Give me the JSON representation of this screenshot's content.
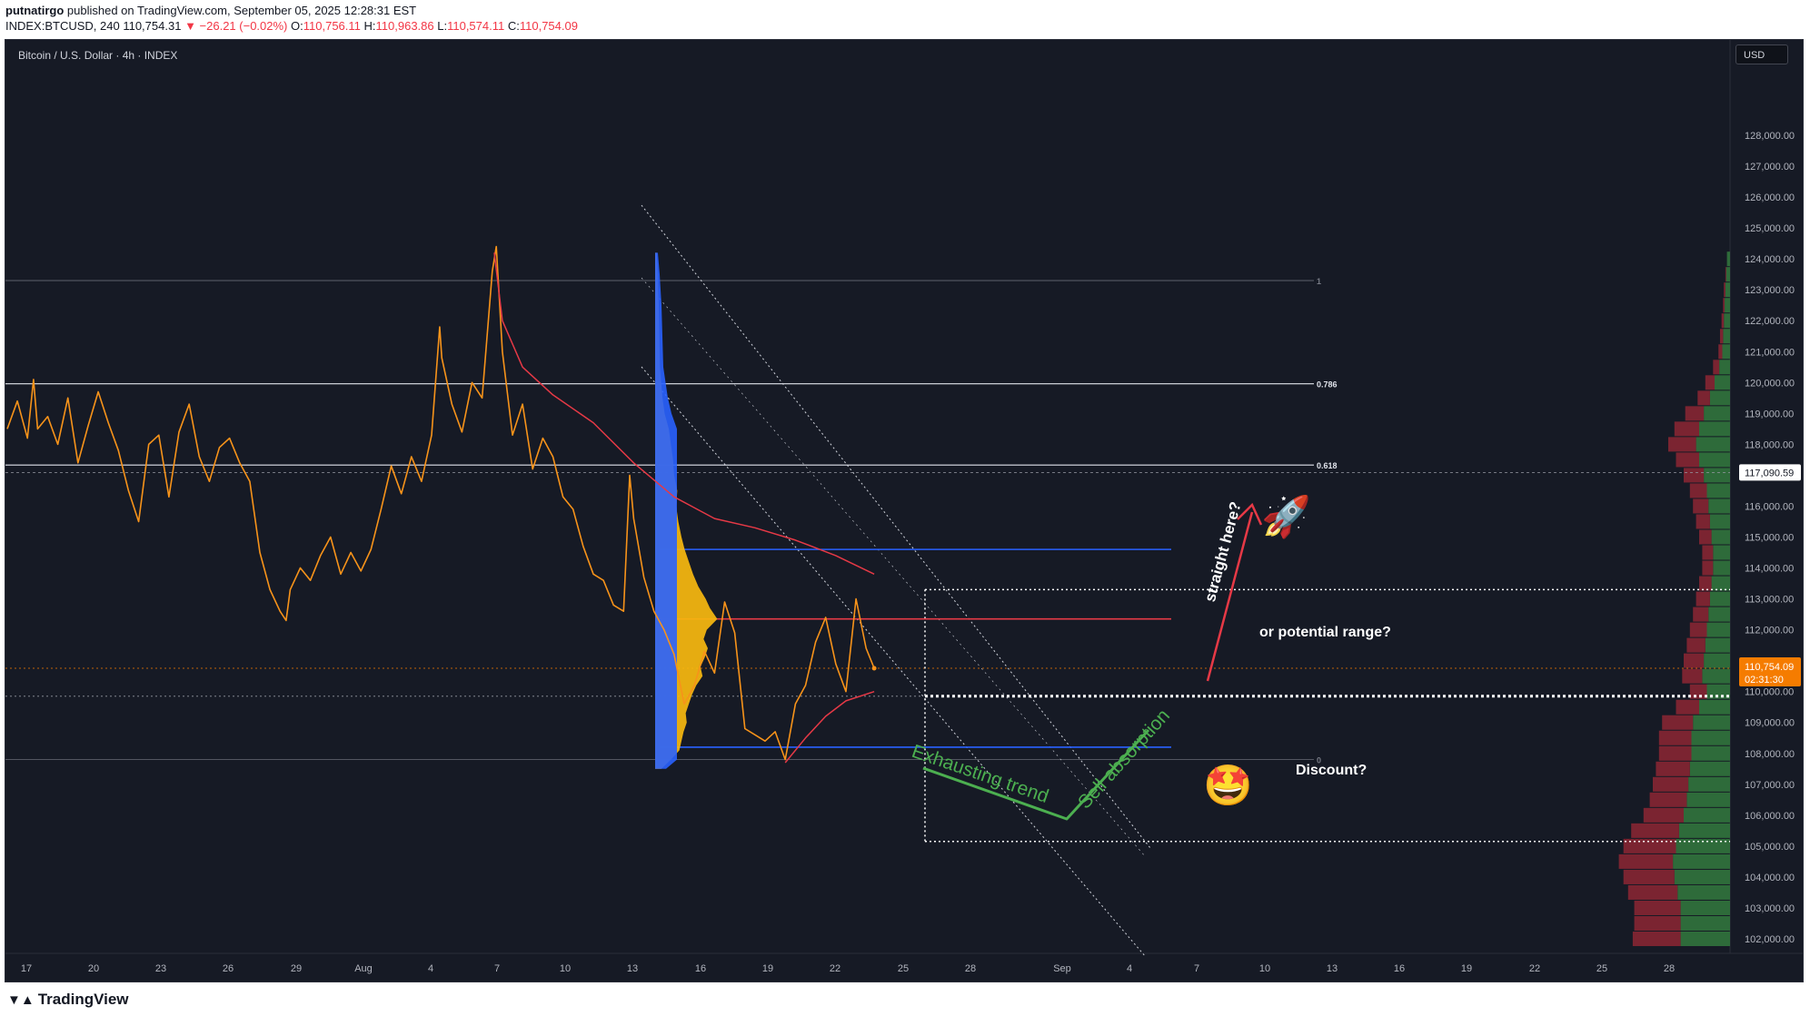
{
  "header": {
    "publisher": "putnatirgo",
    "published_text": "published on TradingView.com, September 05, 2025 12:28:31 EST",
    "symbol": "INDEX:BTCUSD, 240",
    "last": "110,754.31",
    "change": "▼ −26.21 (−0.02%)",
    "ohlc_o_label": "O:",
    "ohlc_o": "110,756.11",
    "ohlc_h_label": "H:",
    "ohlc_h": "110,963.86",
    "ohlc_l_label": "L:",
    "ohlc_l": "110,574.11",
    "ohlc_c_label": "C:",
    "ohlc_c": "110,754.09"
  },
  "chart_title": "Bitcoin / U.S. Dollar · 4h · INDEX",
  "currency_button": "USD",
  "footer": {
    "brand": "TradingView"
  },
  "annotations": {
    "straight_here": "straight here?",
    "potential_range": "or potential range?",
    "discount": "Discount?",
    "exhausting_trend": "Exhausting trend",
    "sell_absorption": "Sell absorption",
    "rocket_emoji": "🚀",
    "star_eyes_emoji": "🤩"
  },
  "colors": {
    "background": "#161a25",
    "price_line": "#f7931a",
    "vwap_line": "#e63946",
    "blue_level": "#2962ff",
    "green_annotation": "#4caf50",
    "price_tag": "#f57c00"
  },
  "chart_data": {
    "type": "line",
    "title": "Bitcoin / U.S. Dollar · 4h · INDEX",
    "x_ticks": [
      "17",
      "20",
      "23",
      "26",
      "29",
      "Aug",
      "4",
      "7",
      "10",
      "13",
      "16",
      "19",
      "22",
      "25",
      "28",
      "Sep",
      "4",
      "7",
      "10",
      "13",
      "16",
      "19",
      "22",
      "25",
      "28"
    ],
    "y_ticks": [
      "102,000.00",
      "103,000.00",
      "104,000.00",
      "105,000.00",
      "106,000.00",
      "107,000.00",
      "108,000.00",
      "109,000.00",
      "110,000.00",
      "111,000.00",
      "112,000.00",
      "113,000.00",
      "114,000.00",
      "115,000.00",
      "116,000.00",
      "117,000.00",
      "118,000.00",
      "119,000.00",
      "120,000.00",
      "121,000.00",
      "122,000.00",
      "123,000.00",
      "124,000.00",
      "125,000.00",
      "126,000.00",
      "127,000.00",
      "128,000.00"
    ],
    "ylim": [
      101500,
      129500
    ],
    "price_tag": {
      "value": 110754.09,
      "label": "110,754.09",
      "countdown": "02:31:30"
    },
    "crosshair_tag": {
      "value": 117090.59,
      "label": "117,090.59"
    },
    "fib_levels": [
      {
        "label": "1",
        "value": 123300
      },
      {
        "label": "0.786",
        "value": 119960
      },
      {
        "label": "0.618",
        "value": 117330
      },
      {
        "label": "0",
        "value": 107800
      }
    ],
    "horizontal_levels": [
      {
        "name": "blue-upper",
        "value": 114600
      },
      {
        "name": "red-poc",
        "value": 112350
      },
      {
        "name": "blue-lower",
        "value": 108200
      }
    ],
    "series": [
      {
        "name": "BTCUSD 4h",
        "points": [
          [
            0,
            118500
          ],
          [
            1,
            119400
          ],
          [
            2,
            118200
          ],
          [
            2.6,
            120100
          ],
          [
            3,
            118500
          ],
          [
            4,
            118900
          ],
          [
            5,
            118000
          ],
          [
            6,
            119500
          ],
          [
            7,
            117400
          ],
          [
            8,
            118600
          ],
          [
            9,
            119700
          ],
          [
            10,
            118700
          ],
          [
            11,
            117800
          ],
          [
            12,
            116500
          ],
          [
            13,
            115500
          ],
          [
            14,
            118000
          ],
          [
            15,
            118300
          ],
          [
            16,
            116300
          ],
          [
            17,
            118400
          ],
          [
            18,
            119300
          ],
          [
            19,
            117600
          ],
          [
            20,
            116800
          ],
          [
            21,
            117900
          ],
          [
            22,
            118200
          ],
          [
            23,
            117400
          ],
          [
            24,
            116800
          ],
          [
            25,
            114500
          ],
          [
            26,
            113300
          ],
          [
            27,
            112600
          ],
          [
            27.6,
            112300
          ],
          [
            28,
            113300
          ],
          [
            29,
            114000
          ],
          [
            30,
            113600
          ],
          [
            31,
            114400
          ],
          [
            32,
            115000
          ],
          [
            33,
            113800
          ],
          [
            34,
            114500
          ],
          [
            35,
            113900
          ],
          [
            36,
            114600
          ],
          [
            37,
            115900
          ],
          [
            38,
            117300
          ],
          [
            39,
            116400
          ],
          [
            40,
            117600
          ],
          [
            41,
            116800
          ],
          [
            42,
            118300
          ],
          [
            42.8,
            121800
          ],
          [
            43,
            120800
          ],
          [
            44,
            119300
          ],
          [
            45,
            118400
          ],
          [
            46,
            120000
          ],
          [
            47,
            119500
          ],
          [
            48,
            123600
          ],
          [
            48.4,
            124400
          ],
          [
            49,
            121000
          ],
          [
            50,
            118300
          ],
          [
            51,
            119300
          ],
          [
            52,
            117200
          ],
          [
            53,
            118200
          ],
          [
            54,
            117600
          ],
          [
            55,
            116300
          ],
          [
            56,
            115900
          ],
          [
            57,
            114700
          ],
          [
            58,
            113800
          ],
          [
            59,
            113600
          ],
          [
            60,
            112800
          ],
          [
            61,
            112600
          ],
          [
            61.6,
            117000
          ],
          [
            62,
            115600
          ],
          [
            63,
            113700
          ],
          [
            64,
            112600
          ],
          [
            65,
            112000
          ],
          [
            66,
            111200
          ],
          [
            67,
            109600
          ],
          [
            68,
            110200
          ],
          [
            69,
            111300
          ],
          [
            70,
            110600
          ],
          [
            71,
            112900
          ],
          [
            72,
            111900
          ],
          [
            73,
            108800
          ],
          [
            74,
            108600
          ],
          [
            75,
            108400
          ],
          [
            76,
            108700
          ],
          [
            77,
            107800
          ],
          [
            78,
            109600
          ],
          [
            79,
            110200
          ],
          [
            80,
            111600
          ],
          [
            81,
            112400
          ],
          [
            82,
            110900
          ],
          [
            83,
            110000
          ],
          [
            84,
            113000
          ],
          [
            85,
            111400
          ],
          [
            85.8,
            110754
          ]
        ]
      },
      {
        "name": "Anchored VWAP",
        "points": [
          [
            48.2,
            124200
          ],
          [
            49,
            122000
          ],
          [
            51,
            120500
          ],
          [
            54,
            119600
          ],
          [
            58,
            118700
          ],
          [
            62,
            117400
          ],
          [
            66,
            116300
          ],
          [
            70,
            115600
          ],
          [
            74,
            115300
          ],
          [
            78,
            114900
          ],
          [
            82,
            114400
          ],
          [
            85.8,
            113800
          ]
        ]
      },
      {
        "name": "Lower VWAP",
        "points": [
          [
            77,
            107700
          ],
          [
            79,
            108500
          ],
          [
            81,
            109200
          ],
          [
            83,
            109700
          ],
          [
            85.8,
            110000
          ]
        ]
      }
    ],
    "volume_profile_right": [
      {
        "price": 124000,
        "buy": 4,
        "sell": 0
      },
      {
        "price": 123500,
        "buy": 5,
        "sell": 1
      },
      {
        "price": 123000,
        "buy": 6,
        "sell": 2
      },
      {
        "price": 122500,
        "buy": 7,
        "sell": 2
      },
      {
        "price": 122000,
        "buy": 8,
        "sell": 3
      },
      {
        "price": 121500,
        "buy": 9,
        "sell": 4
      },
      {
        "price": 121000,
        "buy": 10,
        "sell": 5
      },
      {
        "price": 120500,
        "buy": 14,
        "sell": 8
      },
      {
        "price": 120000,
        "buy": 20,
        "sell": 12
      },
      {
        "price": 119500,
        "buy": 26,
        "sell": 16
      },
      {
        "price": 119000,
        "buy": 34,
        "sell": 24
      },
      {
        "price": 118500,
        "buy": 40,
        "sell": 32
      },
      {
        "price": 118000,
        "buy": 44,
        "sell": 36
      },
      {
        "price": 117500,
        "buy": 40,
        "sell": 30
      },
      {
        "price": 117000,
        "buy": 34,
        "sell": 26
      },
      {
        "price": 116500,
        "buy": 30,
        "sell": 22
      },
      {
        "price": 116000,
        "buy": 28,
        "sell": 20
      },
      {
        "price": 115500,
        "buy": 26,
        "sell": 18
      },
      {
        "price": 115000,
        "buy": 24,
        "sell": 16
      },
      {
        "price": 114500,
        "buy": 22,
        "sell": 14
      },
      {
        "price": 114000,
        "buy": 22,
        "sell": 14
      },
      {
        "price": 113500,
        "buy": 24,
        "sell": 16
      },
      {
        "price": 113000,
        "buy": 26,
        "sell": 18
      },
      {
        "price": 112500,
        "buy": 28,
        "sell": 20
      },
      {
        "price": 112000,
        "buy": 30,
        "sell": 22
      },
      {
        "price": 111500,
        "buy": 32,
        "sell": 24
      },
      {
        "price": 111000,
        "buy": 34,
        "sell": 26
      },
      {
        "price": 110500,
        "buy": 36,
        "sell": 26
      },
      {
        "price": 110000,
        "buy": 30,
        "sell": 22
      },
      {
        "price": 109500,
        "buy": 40,
        "sell": 30
      },
      {
        "price": 109000,
        "buy": 48,
        "sell": 40
      },
      {
        "price": 108500,
        "buy": 50,
        "sell": 42
      },
      {
        "price": 108000,
        "buy": 50,
        "sell": 42
      },
      {
        "price": 107500,
        "buy": 52,
        "sell": 44
      },
      {
        "price": 107000,
        "buy": 54,
        "sell": 46
      },
      {
        "price": 106500,
        "buy": 56,
        "sell": 48
      },
      {
        "price": 106000,
        "buy": 60,
        "sell": 52
      },
      {
        "price": 105500,
        "buy": 66,
        "sell": 62
      },
      {
        "price": 105000,
        "buy": 70,
        "sell": 68
      },
      {
        "price": 104500,
        "buy": 74,
        "sell": 70
      },
      {
        "price": 104000,
        "buy": 72,
        "sell": 66
      },
      {
        "price": 103500,
        "buy": 68,
        "sell": 64
      },
      {
        "price": 103000,
        "buy": 64,
        "sell": 60
      },
      {
        "price": 102500,
        "buy": 64,
        "sell": 60
      },
      {
        "price": 102000,
        "buy": 64,
        "sell": 62
      }
    ],
    "session_volume_profile": [
      [
        124200,
        3
      ],
      [
        123500,
        5
      ],
      [
        122500,
        7
      ],
      [
        121500,
        8
      ],
      [
        120500,
        9
      ],
      [
        119500,
        14
      ],
      [
        119000,
        18
      ],
      [
        118500,
        26
      ],
      [
        118000,
        30
      ],
      [
        117500,
        34
      ],
      [
        117000,
        36
      ],
      [
        116500,
        42
      ],
      [
        116000,
        40
      ],
      [
        115500,
        44
      ],
      [
        115000,
        50
      ],
      [
        114600,
        56
      ],
      [
        114200,
        64
      ],
      [
        113800,
        72
      ],
      [
        113400,
        82
      ],
      [
        113000,
        96
      ],
      [
        112700,
        104
      ],
      [
        112350,
        118
      ],
      [
        112000,
        98
      ],
      [
        111700,
        92
      ],
      [
        111400,
        100
      ],
      [
        111100,
        94
      ],
      [
        110800,
        86
      ],
      [
        110500,
        90
      ],
      [
        110200,
        78
      ],
      [
        109900,
        70
      ],
      [
        109600,
        64
      ],
      [
        109300,
        58
      ],
      [
        109000,
        60
      ],
      [
        108700,
        54
      ],
      [
        108400,
        50
      ],
      [
        108100,
        46
      ],
      [
        107800,
        30
      ],
      [
        107500,
        12
      ]
    ],
    "grid": false,
    "legend": "none"
  }
}
